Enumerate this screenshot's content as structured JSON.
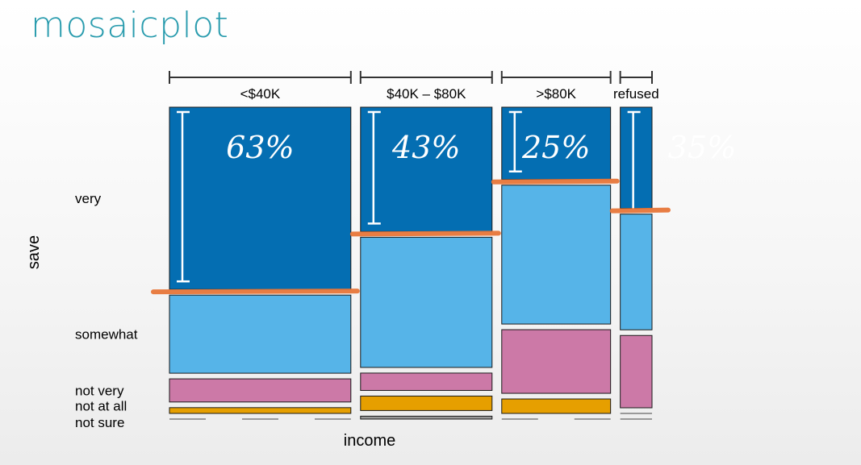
{
  "slide": {
    "title": "mosaicplot"
  },
  "colors": {
    "very": "#046eb2",
    "somewhat": "#56b4e8",
    "not very": "#cc79a7",
    "not at all": "#e69f00",
    "not sure": "#999999",
    "highlight": "#e8773a",
    "annotation": "#ffffff",
    "annotation_faded": "#a9a9a9"
  },
  "chart_data": {
    "type": "mosaic",
    "title": "mosaicplot",
    "xlabel": "income",
    "ylabel": "save",
    "x_categories": [
      "<$40K",
      "$40K – $80K",
      ">$80K",
      "refused"
    ],
    "x_proportions": [
      0.4,
      0.29,
      0.24,
      0.07
    ],
    "y_categories": [
      "very",
      "somewhat",
      "not very",
      "not at all",
      "not sure"
    ],
    "y_tick_labels": [
      "very",
      "somewhat",
      "not very",
      "not at all",
      "not sure"
    ],
    "proportions": [
      [
        0.63,
        0.27,
        0.08,
        0.02,
        0.0
      ],
      [
        0.43,
        0.45,
        0.06,
        0.05,
        0.01
      ],
      [
        0.25,
        0.48,
        0.22,
        0.05,
        0.0
      ],
      [
        0.35,
        0.4,
        0.25,
        0.0,
        0.0
      ]
    ],
    "annotations": [
      "63%",
      "43%",
      "25%",
      "35%"
    ]
  }
}
